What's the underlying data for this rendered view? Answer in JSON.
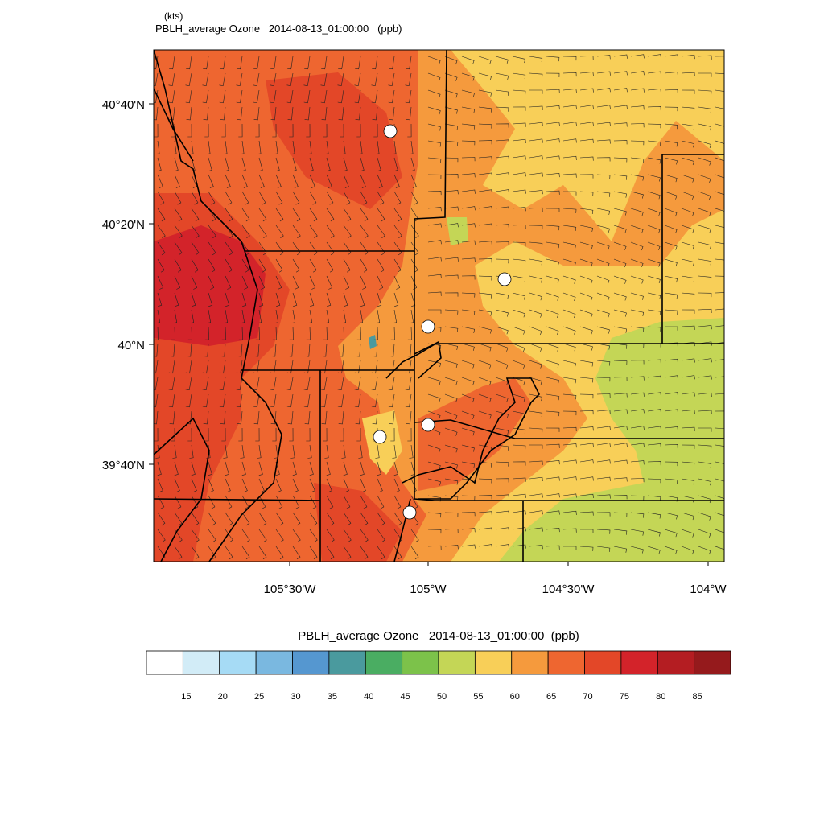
{
  "header": {
    "units_note": "(kts)",
    "title": "PBLH_average Ozone   2014-08-13_01:00:00   (ppb)"
  },
  "map": {
    "lat_labels": [
      "40°40'N",
      "40°20'N",
      "40°N",
      "39°40'N"
    ],
    "lon_labels": [
      "105°30'W",
      "105°W",
      "104°30'W",
      "104°W"
    ]
  },
  "colorbar": {
    "title": "PBLH_average Ozone   2014-08-13_01:00:00  (ppb)",
    "colors": [
      "#ffffff",
      "#d2ecf7",
      "#a6dbf5",
      "#7ab8e0",
      "#5597d0",
      "#4a9a9e",
      "#4aad62",
      "#7cc24a",
      "#c4d656",
      "#f8cf58",
      "#f59a3d",
      "#ee6630",
      "#e34728",
      "#d3232a",
      "#b41d22",
      "#951a1c"
    ],
    "levels": [
      15,
      20,
      25,
      30,
      35,
      40,
      45,
      50,
      55,
      60,
      65,
      70,
      75,
      80,
      85
    ]
  }
}
